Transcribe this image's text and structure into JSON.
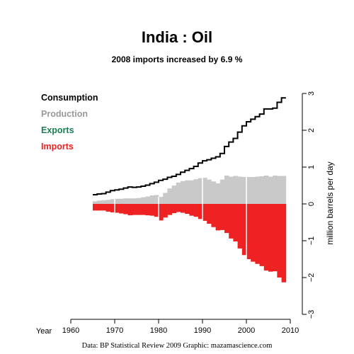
{
  "chart_data": {
    "type": "bar",
    "title": "India :  Oil",
    "subtitle": "2008 imports increased by 6.9 %",
    "xlabel": "Year",
    "ylabel": "million barrels per day",
    "xlim": [
      1960,
      2010
    ],
    "ylim": [
      -3,
      3
    ],
    "x_ticks": [
      1960,
      1970,
      1980,
      1990,
      2000,
      2010
    ],
    "y_ticks": [
      -3,
      -2,
      -1,
      0,
      1,
      2,
      3
    ],
    "legend_position": "top-left",
    "legend": [
      {
        "label": "Consumption",
        "color": "#000000"
      },
      {
        "label": "Production",
        "color": "#999999"
      },
      {
        "label": "Exports",
        "color": "#1a7f55"
      },
      {
        "label": "Imports",
        "color": "#ee2222"
      }
    ],
    "years": [
      1965,
      1966,
      1967,
      1968,
      1969,
      1970,
      1971,
      1972,
      1973,
      1974,
      1975,
      1976,
      1977,
      1978,
      1979,
      1980,
      1981,
      1982,
      1983,
      1984,
      1985,
      1986,
      1987,
      1988,
      1989,
      1990,
      1991,
      1992,
      1993,
      1994,
      1995,
      1996,
      1997,
      1998,
      1999,
      2000,
      2001,
      2002,
      2003,
      2004,
      2005,
      2006,
      2007,
      2008
    ],
    "series": [
      {
        "name": "Consumption",
        "values": [
          0.25,
          0.27,
          0.28,
          0.32,
          0.36,
          0.38,
          0.4,
          0.43,
          0.46,
          0.45,
          0.46,
          0.48,
          0.51,
          0.55,
          0.59,
          0.64,
          0.67,
          0.72,
          0.75,
          0.8,
          0.86,
          0.91,
          0.96,
          1.02,
          1.11,
          1.17,
          1.2,
          1.24,
          1.28,
          1.37,
          1.56,
          1.68,
          1.78,
          1.95,
          2.12,
          2.23,
          2.3,
          2.37,
          2.44,
          2.58,
          2.58,
          2.6,
          2.76,
          2.88
        ]
      },
      {
        "name": "Production",
        "values": [
          0.07,
          0.09,
          0.1,
          0.11,
          0.13,
          0.14,
          0.14,
          0.15,
          0.15,
          0.15,
          0.16,
          0.18,
          0.2,
          0.23,
          0.24,
          0.19,
          0.3,
          0.42,
          0.5,
          0.58,
          0.62,
          0.64,
          0.64,
          0.67,
          0.7,
          0.71,
          0.66,
          0.61,
          0.56,
          0.66,
          0.77,
          0.74,
          0.76,
          0.74,
          0.73,
          0.73,
          0.73,
          0.74,
          0.75,
          0.77,
          0.74,
          0.77,
          0.76,
          0.76
        ]
      },
      {
        "name": "Imports",
        "values": [
          -0.18,
          -0.18,
          -0.18,
          -0.21,
          -0.23,
          -0.24,
          -0.26,
          -0.28,
          -0.31,
          -0.3,
          -0.3,
          -0.3,
          -0.31,
          -0.32,
          -0.35,
          -0.45,
          -0.37,
          -0.3,
          -0.25,
          -0.22,
          -0.24,
          -0.27,
          -0.32,
          -0.35,
          -0.41,
          -0.46,
          -0.54,
          -0.63,
          -0.72,
          -0.71,
          -0.79,
          -0.94,
          -1.02,
          -1.21,
          -1.39,
          -1.5,
          -1.57,
          -1.63,
          -1.69,
          -1.81,
          -1.84,
          -1.83,
          -2.0,
          -2.13
        ]
      }
    ]
  },
  "footer": {
    "source": "Data: BP Statistical Review 2009    Graphic: mazamascience.com"
  }
}
